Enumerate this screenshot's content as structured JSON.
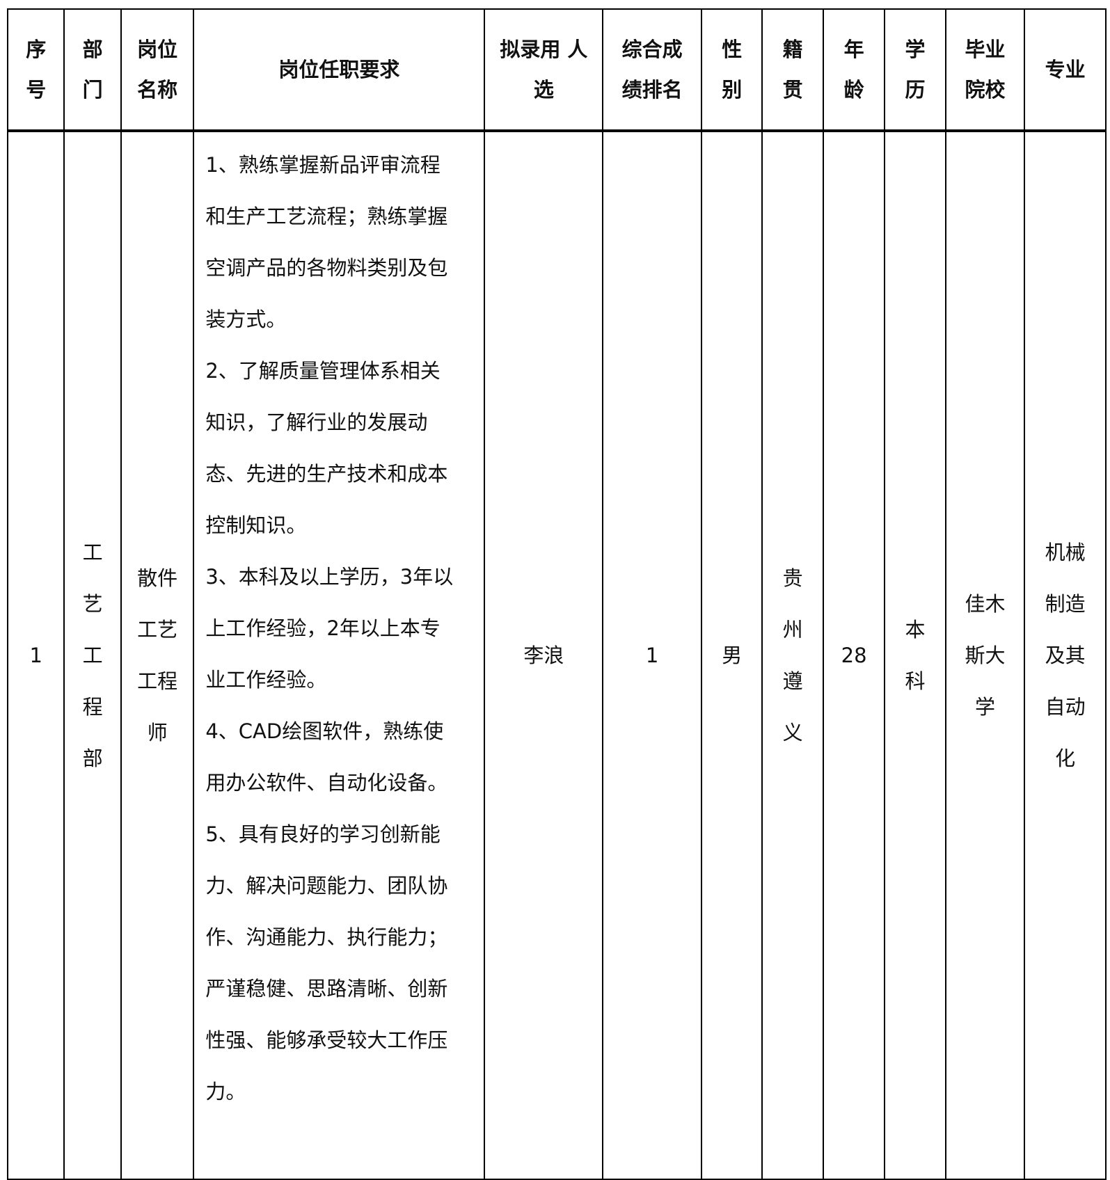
{
  "headers": [
    "序\n号",
    "部\n门",
    "岗位\n名称",
    "岗位任职要求",
    "拟录用 人\n选",
    "综合成\n绩排名",
    "性\n别",
    "籍\n贯",
    "年\n龄",
    "学\n历",
    "毕业\n院校",
    "专业"
  ],
  "row": {
    "index": "1",
    "department": "工\n艺\n工\n程\n部",
    "position": "散件\n工艺\n工程\n师",
    "requirements": "1、熟练掌握新品评审流程\n和生产工艺流程；熟练掌握\n空调产品的各物料类别及包\n装方式。\n2、了解质量管理体系相关\n知识，了解行业的发展动\n态、先进的生产技术和成本\n控制知识。\n3、本科及以上学历，3年以\n上工作经验，2年以上本专\n业工作经验。\n4、CAD绘图软件，熟练使\n用办公软件、自动化设备。\n5、具有良好的学习创新能\n力、解决问题能力、团队协\n作、沟通能力、执行能力；\n严谨稳健、思路清晰、创新\n性强、能够承受较大工作压\n力。",
    "candidate": "李浪",
    "rank": "1",
    "gender": "男",
    "origin": "贵\n州\n遵\n义",
    "age": "28",
    "education": "本\n科",
    "school": "佳木\n斯大\n学",
    "major": "机械\n制造\n及其\n自动\n化"
  }
}
